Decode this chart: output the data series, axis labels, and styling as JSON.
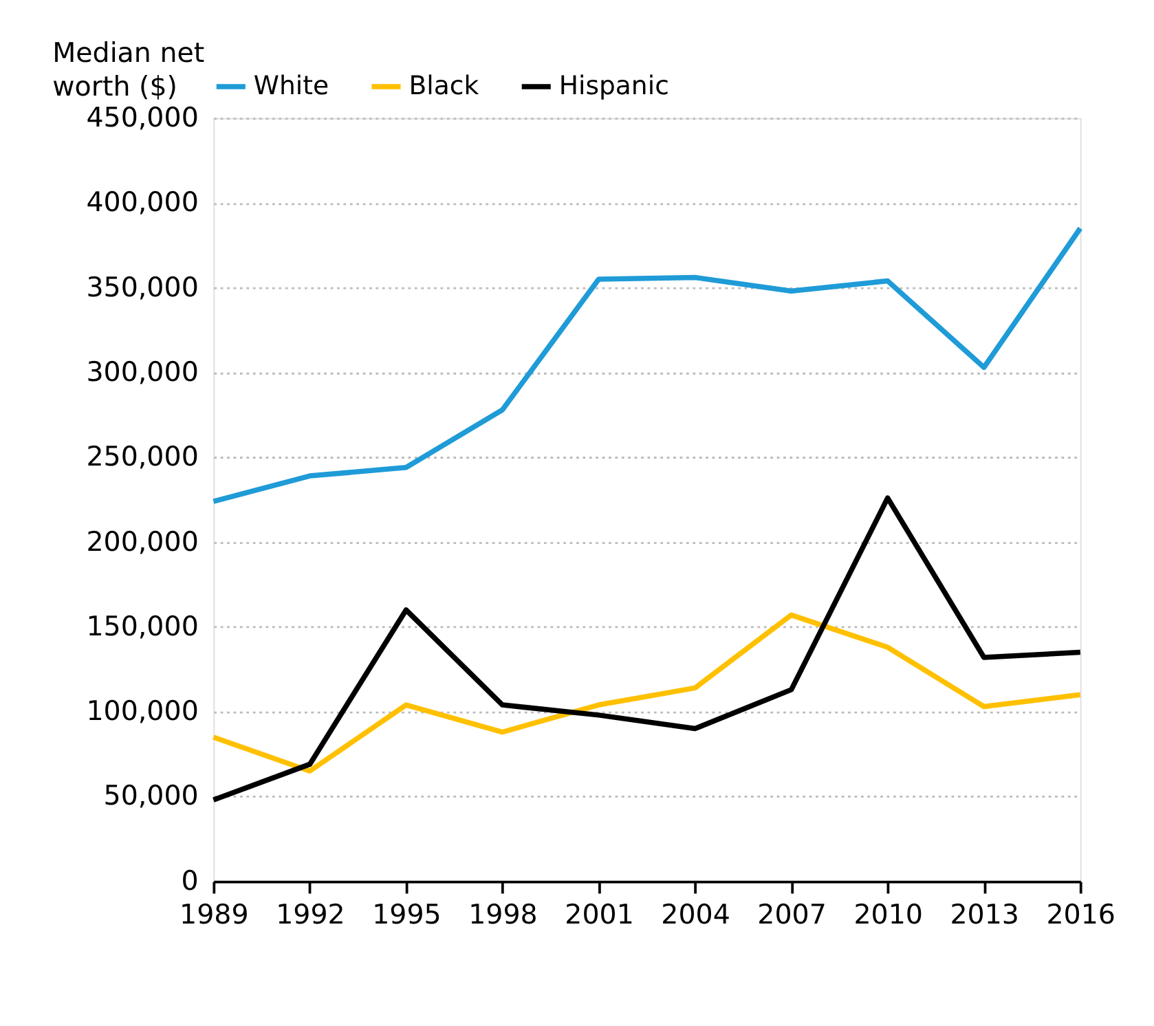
{
  "chart_data": {
    "type": "line",
    "ylabel": "Median net worth ($)",
    "x": [
      1989,
      1992,
      1995,
      1998,
      2001,
      2004,
      2007,
      2010,
      2013,
      2016
    ],
    "series": [
      {
        "name": "White",
        "color": "#1f9bd7",
        "values": [
          224000,
          239000,
          244000,
          278000,
          355000,
          356000,
          348000,
          354000,
          303000,
          385000
        ]
      },
      {
        "name": "Black",
        "color": "#ffc000",
        "values": [
          85000,
          65000,
          104000,
          88000,
          104000,
          114000,
          157000,
          138000,
          103000,
          110000
        ]
      },
      {
        "name": "Hispanic",
        "color": "#000000",
        "values": [
          48000,
          69000,
          160000,
          104000,
          98000,
          90000,
          113000,
          226000,
          132000,
          135000
        ]
      }
    ],
    "xlim": [
      1989,
      2016
    ],
    "xticks": [
      1989,
      1992,
      1995,
      1998,
      2001,
      2004,
      2007,
      2010,
      2013,
      2016
    ],
    "ylim": [
      0,
      450000
    ],
    "yticks": [
      0,
      {
        "value": 50000,
        "label": "50,000"
      },
      {
        "value": 100000,
        "label": "100,000"
      },
      {
        "value": 150000,
        "label": "150,000"
      },
      {
        "value": 200000,
        "label": "200,000"
      },
      {
        "value": 250000,
        "label": "250,000"
      },
      {
        "value": 300000,
        "label": "300,000"
      },
      {
        "value": 350000,
        "label": "350,000"
      },
      {
        "value": 400000,
        "label": "400,000"
      },
      {
        "value": 450000,
        "label": "450,000"
      }
    ],
    "grid": "y",
    "legend": "top",
    "marker": "none",
    "line_style": "solid"
  }
}
